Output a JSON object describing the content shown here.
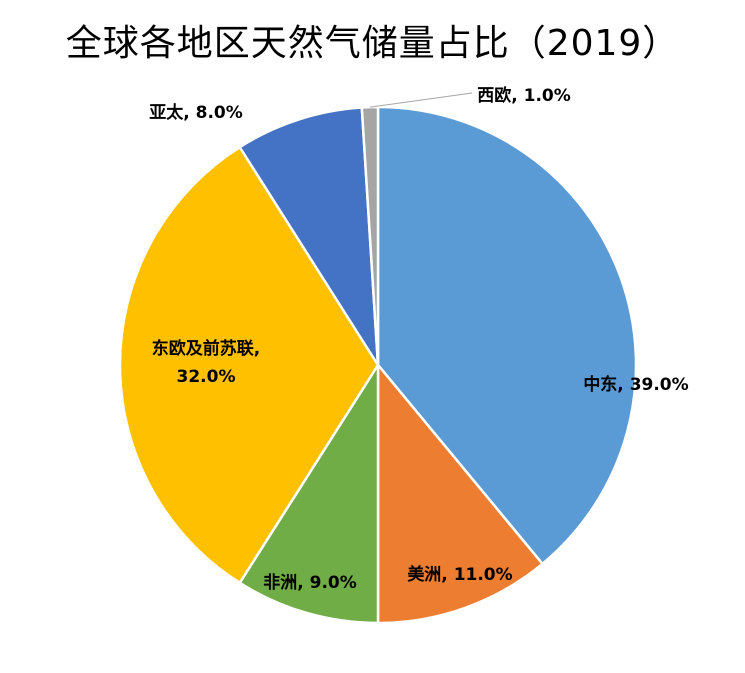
{
  "title": "全球各地区天然气储量占比（2019）",
  "chart_data": {
    "type": "pie",
    "title": "全球各地区天然气储量占比（2019）",
    "slices": [
      {
        "name": "中东",
        "value": 39.0,
        "label": "中东, 39.0%",
        "color": "#5b9bd5"
      },
      {
        "name": "美洲",
        "value": 11.0,
        "label": "美洲, 11.0%",
        "color": "#ed7d31"
      },
      {
        "name": "非洲",
        "value": 9.0,
        "label": "非洲, 9.0%",
        "color": "#70ad47"
      },
      {
        "name": "东欧及前苏联",
        "value": 32.0,
        "label_lines": [
          "东欧及前苏联,",
          "32.0%"
        ],
        "color": "#ffc000"
      },
      {
        "name": "亚太",
        "value": 8.0,
        "label": "亚太, 8.0%",
        "color": "#4472c4"
      },
      {
        "name": "西欧",
        "value": 1.0,
        "label": "西欧, 1.0%",
        "color": "#a5a5a5"
      }
    ],
    "start_angle": "12 o'clock",
    "direction": "clockwise",
    "legend": "none"
  }
}
